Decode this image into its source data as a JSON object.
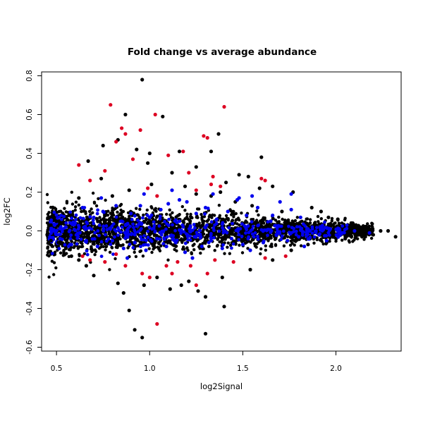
{
  "chart_data": {
    "type": "scatter",
    "title": "Fold change vs average abundance",
    "xlabel": "log2Signal",
    "ylabel": "log2FC",
    "xlim": [
      0.42,
      2.35
    ],
    "ylim": [
      -0.62,
      0.82
    ],
    "xticks": [
      0.5,
      1.0,
      1.5,
      2.0
    ],
    "xtick_labels": [
      "0.5",
      "1.0",
      "1.5",
      "2.0"
    ],
    "yticks": [
      -0.6,
      -0.4,
      -0.2,
      0.0,
      0.2,
      0.4,
      0.6,
      0.8
    ],
    "ytick_labels": [
      "-0.6",
      "-0.4",
      "-0.2",
      "0.0",
      "0.2",
      "0.4",
      "0.6",
      "0.8"
    ],
    "grid": false,
    "legend": "none",
    "series": [
      {
        "color": "#000000",
        "points": [
          [
            0.96,
            0.78
          ],
          [
            0.87,
            0.6
          ],
          [
            1.07,
            0.59
          ],
          [
            1.37,
            0.5
          ],
          [
            0.83,
            0.47
          ],
          [
            0.75,
            0.44
          ],
          [
            0.93,
            0.42
          ],
          [
            1.0,
            0.4
          ],
          [
            1.16,
            0.41
          ],
          [
            1.33,
            0.41
          ],
          [
            0.67,
            0.36
          ],
          [
            1.6,
            0.38
          ],
          [
            0.99,
            0.35
          ],
          [
            1.25,
            0.33
          ],
          [
            1.48,
            0.29
          ],
          [
            1.53,
            0.28
          ],
          [
            0.74,
            0.27
          ],
          [
            1.12,
            0.3
          ],
          [
            1.41,
            0.25
          ],
          [
            1.59,
            0.22
          ],
          [
            1.66,
            0.23
          ],
          [
            1.77,
            0.2
          ],
          [
            0.62,
            0.17
          ],
          [
            0.89,
            0.21
          ],
          [
            1.25,
            0.19
          ],
          [
            1.87,
            0.12
          ],
          [
            1.92,
            0.1
          ],
          [
            1.96,
            0.07
          ],
          [
            2.01,
            0.06
          ],
          [
            2.09,
            0.04
          ],
          [
            2.15,
            0.02
          ],
          [
            2.24,
            0.0
          ],
          [
            2.28,
            0.0
          ],
          [
            2.32,
            -0.03
          ],
          [
            2.2,
            -0.02
          ],
          [
            0.45,
            -0.02
          ],
          [
            0.47,
            0.03
          ],
          [
            0.47,
            -0.05
          ],
          [
            0.5,
            0.05
          ],
          [
            0.51,
            -0.06
          ],
          [
            0.55,
            -0.09
          ],
          [
            0.58,
            -0.13
          ],
          [
            0.62,
            -0.15
          ],
          [
            0.66,
            -0.18
          ],
          [
            0.7,
            -0.23
          ],
          [
            0.83,
            -0.27
          ],
          [
            0.86,
            -0.32
          ],
          [
            0.97,
            -0.28
          ],
          [
            1.04,
            -0.24
          ],
          [
            1.17,
            -0.28
          ],
          [
            1.26,
            -0.31
          ],
          [
            1.3,
            -0.34
          ],
          [
            1.4,
            -0.39
          ],
          [
            0.89,
            -0.41
          ],
          [
            0.92,
            -0.51
          ],
          [
            0.96,
            -0.55
          ],
          [
            1.3,
            -0.53
          ],
          [
            1.11,
            -0.3
          ],
          [
            1.21,
            -0.26
          ],
          [
            1.39,
            -0.24
          ],
          [
            1.54,
            -0.2
          ],
          [
            1.66,
            -0.15
          ],
          [
            1.76,
            -0.1
          ],
          [
            1.85,
            -0.07
          ],
          [
            1.95,
            -0.06
          ],
          [
            2.05,
            -0.04
          ],
          [
            2.14,
            -0.03
          ],
          [
            1.71,
            0.1
          ],
          [
            1.55,
            0.13
          ],
          [
            1.46,
            0.15
          ],
          [
            1.33,
            0.18
          ],
          [
            1.01,
            0.24
          ],
          [
            0.8,
            0.18
          ],
          [
            1.19,
            0.23
          ],
          [
            1.38,
            0.2
          ]
        ]
      },
      {
        "color": "#dd0022",
        "points": [
          [
            0.79,
            0.65
          ],
          [
            1.4,
            0.64
          ],
          [
            1.03,
            0.6
          ],
          [
            0.85,
            0.53
          ],
          [
            0.95,
            0.52
          ],
          [
            0.87,
            0.5
          ],
          [
            1.29,
            0.49
          ],
          [
            1.31,
            0.48
          ],
          [
            0.82,
            0.46
          ],
          [
            1.1,
            0.39
          ],
          [
            1.18,
            0.41
          ],
          [
            0.91,
            0.37
          ],
          [
            0.62,
            0.34
          ],
          [
            0.76,
            0.31
          ],
          [
            1.21,
            0.3
          ],
          [
            1.34,
            0.28
          ],
          [
            1.6,
            0.27
          ],
          [
            1.62,
            0.26
          ],
          [
            0.68,
            0.26
          ],
          [
            1.38,
            0.23
          ],
          [
            1.33,
            0.24
          ],
          [
            1.25,
            0.21
          ],
          [
            0.99,
            0.22
          ],
          [
            1.04,
            0.18
          ],
          [
            1.15,
            -0.16
          ],
          [
            1.09,
            -0.18
          ],
          [
            1.22,
            -0.18
          ],
          [
            0.96,
            -0.22
          ],
          [
            1.0,
            -0.24
          ],
          [
            1.12,
            -0.22
          ],
          [
            1.31,
            -0.22
          ],
          [
            0.64,
            -0.13
          ],
          [
            0.68,
            -0.15
          ],
          [
            0.82,
            -0.12
          ],
          [
            1.25,
            -0.28
          ],
          [
            1.04,
            -0.48
          ],
          [
            1.62,
            -0.14
          ],
          [
            1.73,
            -0.13
          ],
          [
            1.35,
            -0.15
          ],
          [
            1.45,
            -0.16
          ],
          [
            0.76,
            -0.16
          ],
          [
            0.87,
            -0.18
          ]
        ]
      },
      {
        "color": "#0000ee",
        "points": [
          [
            0.49,
            0.03
          ],
          [
            0.55,
            0.02
          ],
          [
            0.6,
            0.04
          ],
          [
            0.64,
            0.12
          ],
          [
            0.7,
            0.07
          ],
          [
            0.75,
            0.1
          ],
          [
            0.79,
            0.01
          ],
          [
            0.85,
            0.05
          ],
          [
            0.9,
            0.09
          ],
          [
            0.95,
            0.13
          ],
          [
            1.0,
            0.07
          ],
          [
            1.06,
            0.11
          ],
          [
            1.1,
            0.14
          ],
          [
            1.16,
            0.05
          ],
          [
            1.2,
            0.15
          ],
          [
            1.25,
            0.09
          ],
          [
            1.3,
            0.12
          ],
          [
            1.36,
            0.06
          ],
          [
            1.42,
            0.1
          ],
          [
            1.47,
            0.16
          ],
          [
            1.52,
            0.08
          ],
          [
            1.58,
            0.12
          ],
          [
            1.65,
            0.05
          ],
          [
            1.7,
            0.15
          ],
          [
            1.76,
            0.11
          ],
          [
            1.81,
            0.07
          ],
          [
            0.52,
            -0.04
          ],
          [
            0.58,
            -0.07
          ],
          [
            0.66,
            -0.05
          ],
          [
            0.72,
            -0.08
          ],
          [
            0.8,
            -0.05
          ],
          [
            0.86,
            -0.09
          ],
          [
            0.92,
            -0.06
          ],
          [
            0.98,
            -0.1
          ],
          [
            1.04,
            -0.04
          ],
          [
            1.09,
            -0.08
          ],
          [
            1.14,
            -0.06
          ],
          [
            1.19,
            -0.11
          ],
          [
            1.24,
            -0.03
          ],
          [
            1.28,
            -0.08
          ],
          [
            1.33,
            -0.05
          ],
          [
            1.39,
            -0.09
          ],
          [
            1.44,
            -0.04
          ],
          [
            1.5,
            -0.07
          ],
          [
            1.56,
            -0.03
          ],
          [
            1.61,
            -0.06
          ],
          [
            1.68,
            -0.02
          ],
          [
            1.74,
            -0.05
          ],
          [
            1.8,
            -0.03
          ],
          [
            1.86,
            0.0
          ],
          [
            1.91,
            -0.02
          ],
          [
            1.97,
            0.01
          ],
          [
            2.03,
            -0.01
          ],
          [
            2.1,
            0.0
          ],
          [
            0.74,
            0.17
          ],
          [
            0.97,
            0.19
          ],
          [
            1.12,
            0.21
          ],
          [
            1.34,
            0.19
          ],
          [
            1.55,
            0.18
          ],
          [
            1.76,
            0.19
          ],
          [
            1.16,
            0.16
          ],
          [
            1.48,
            0.17
          ],
          [
            1.66,
            0.08
          ],
          [
            0.82,
            0.13
          ],
          [
            1.23,
            -0.14
          ],
          [
            0.88,
            -0.14
          ],
          [
            1.54,
            -0.1
          ],
          [
            1.83,
            -0.08
          ],
          [
            1.95,
            -0.05
          ],
          [
            2.18,
            -0.01
          ]
        ]
      }
    ]
  }
}
